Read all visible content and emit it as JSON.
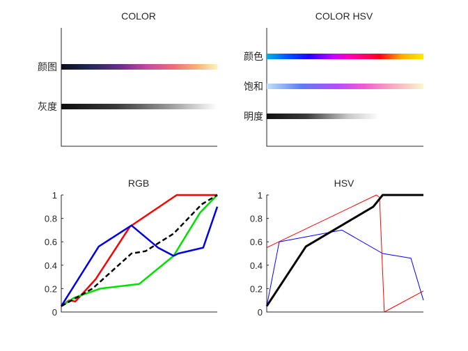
{
  "chart_data": [
    {
      "type": "colorbar",
      "title": "COLOR",
      "rows": [
        {
          "label": "颜图",
          "stops": [
            [
              0,
              "#0d0d1a"
            ],
            [
              0.18,
              "#1f2a55"
            ],
            [
              0.38,
              "#6a2f8a"
            ],
            [
              0.55,
              "#c44aa0"
            ],
            [
              0.72,
              "#ee6e7a"
            ],
            [
              0.87,
              "#f7b27a"
            ],
            [
              1,
              "#fcf4bc"
            ]
          ]
        },
        {
          "label": "灰度",
          "stops": [
            [
              0,
              "#0d0d0d"
            ],
            [
              0.35,
              "#3a3a3a"
            ],
            [
              0.7,
              "#9c9c9c"
            ],
            [
              1,
              "#ffffff"
            ]
          ]
        }
      ]
    },
    {
      "type": "colorbar",
      "title": "COLOR HSV",
      "rows": [
        {
          "label": "颜色",
          "stops": [
            [
              0,
              "#00b2e8"
            ],
            [
              0.13,
              "#0055ff"
            ],
            [
              0.27,
              "#2200ff"
            ],
            [
              0.43,
              "#cc00ff"
            ],
            [
              0.55,
              "#ff00a6"
            ],
            [
              0.72,
              "#ff0019"
            ],
            [
              0.86,
              "#ffaa00"
            ],
            [
              1,
              "#f8ee00"
            ]
          ]
        },
        {
          "label": "饱和",
          "stops": [
            [
              0,
              "#bfe2f5"
            ],
            [
              0.22,
              "#5e7cf5"
            ],
            [
              0.45,
              "#b64bff"
            ],
            [
              0.62,
              "#f25ad2"
            ],
            [
              0.8,
              "#f8a8c0"
            ],
            [
              1,
              "#faf6d0"
            ]
          ]
        },
        {
          "label": "明度",
          "stops": [
            [
              0,
              "#101010"
            ],
            [
              0.35,
              "#3a3a3a"
            ],
            [
              0.72,
              "#c8c8c8"
            ],
            [
              1,
              "#ffffff"
            ]
          ],
          "extent": 0.72
        }
      ]
    },
    {
      "type": "line",
      "title": "RGB",
      "ylim": [
        0,
        1
      ],
      "xlim": [
        0,
        1
      ],
      "yticks": [
        "0",
        "0.2",
        "0.4",
        "0.6",
        "0.8",
        "1"
      ],
      "series": [
        {
          "color": "#ff0000",
          "width": 2.5,
          "dash": "",
          "x": [
            0,
            0.05,
            0.09,
            0.22,
            0.44,
            0.74,
            0.89,
            1
          ],
          "y": [
            0.05,
            0.1,
            0.09,
            0.28,
            0.73,
            1,
            1,
            1
          ]
        },
        {
          "color": "#00e000",
          "width": 2.5,
          "dash": "",
          "x": [
            0,
            0.08,
            0.25,
            0.5,
            0.72,
            0.89,
            1
          ],
          "y": [
            0.05,
            0.12,
            0.2,
            0.24,
            0.48,
            0.85,
            1
          ]
        },
        {
          "color": "#0000e6",
          "width": 2.5,
          "dash": "",
          "x": [
            0,
            0.24,
            0.45,
            0.62,
            0.72,
            0.75,
            0.91,
            1
          ],
          "y": [
            0.05,
            0.56,
            0.74,
            0.55,
            0.48,
            0.5,
            0.55,
            0.9
          ]
        },
        {
          "color": "#000000",
          "width": 2.5,
          "dash": "7,4",
          "x": [
            0,
            0.2,
            0.45,
            0.54,
            0.72,
            0.9,
            1
          ],
          "y": [
            0.05,
            0.2,
            0.5,
            0.52,
            0.67,
            0.92,
            1
          ]
        }
      ]
    },
    {
      "type": "line",
      "title": "HSV",
      "ylim": [
        0,
        1
      ],
      "xlim": [
        0,
        1
      ],
      "yticks": [
        "0",
        "0.2",
        "0.4",
        "0.6",
        "0.8",
        "1"
      ],
      "series": [
        {
          "color": "#ff0000",
          "width": 1,
          "dash": "",
          "x": [
            0,
            0.7,
            0.72,
            0.75,
            1
          ],
          "y": [
            0.55,
            1,
            0.98,
            0,
            0.18
          ]
        },
        {
          "color": "#0000ff",
          "width": 1,
          "dash": "",
          "x": [
            0,
            0.08,
            0.48,
            0.74,
            0.92,
            1
          ],
          "y": [
            0.05,
            0.6,
            0.7,
            0.5,
            0.46,
            0.1
          ]
        },
        {
          "color": "#000000",
          "width": 3,
          "dash": "",
          "x": [
            0,
            0.25,
            0.68,
            0.74,
            1
          ],
          "y": [
            0.05,
            0.56,
            0.9,
            1,
            1
          ]
        }
      ]
    }
  ]
}
